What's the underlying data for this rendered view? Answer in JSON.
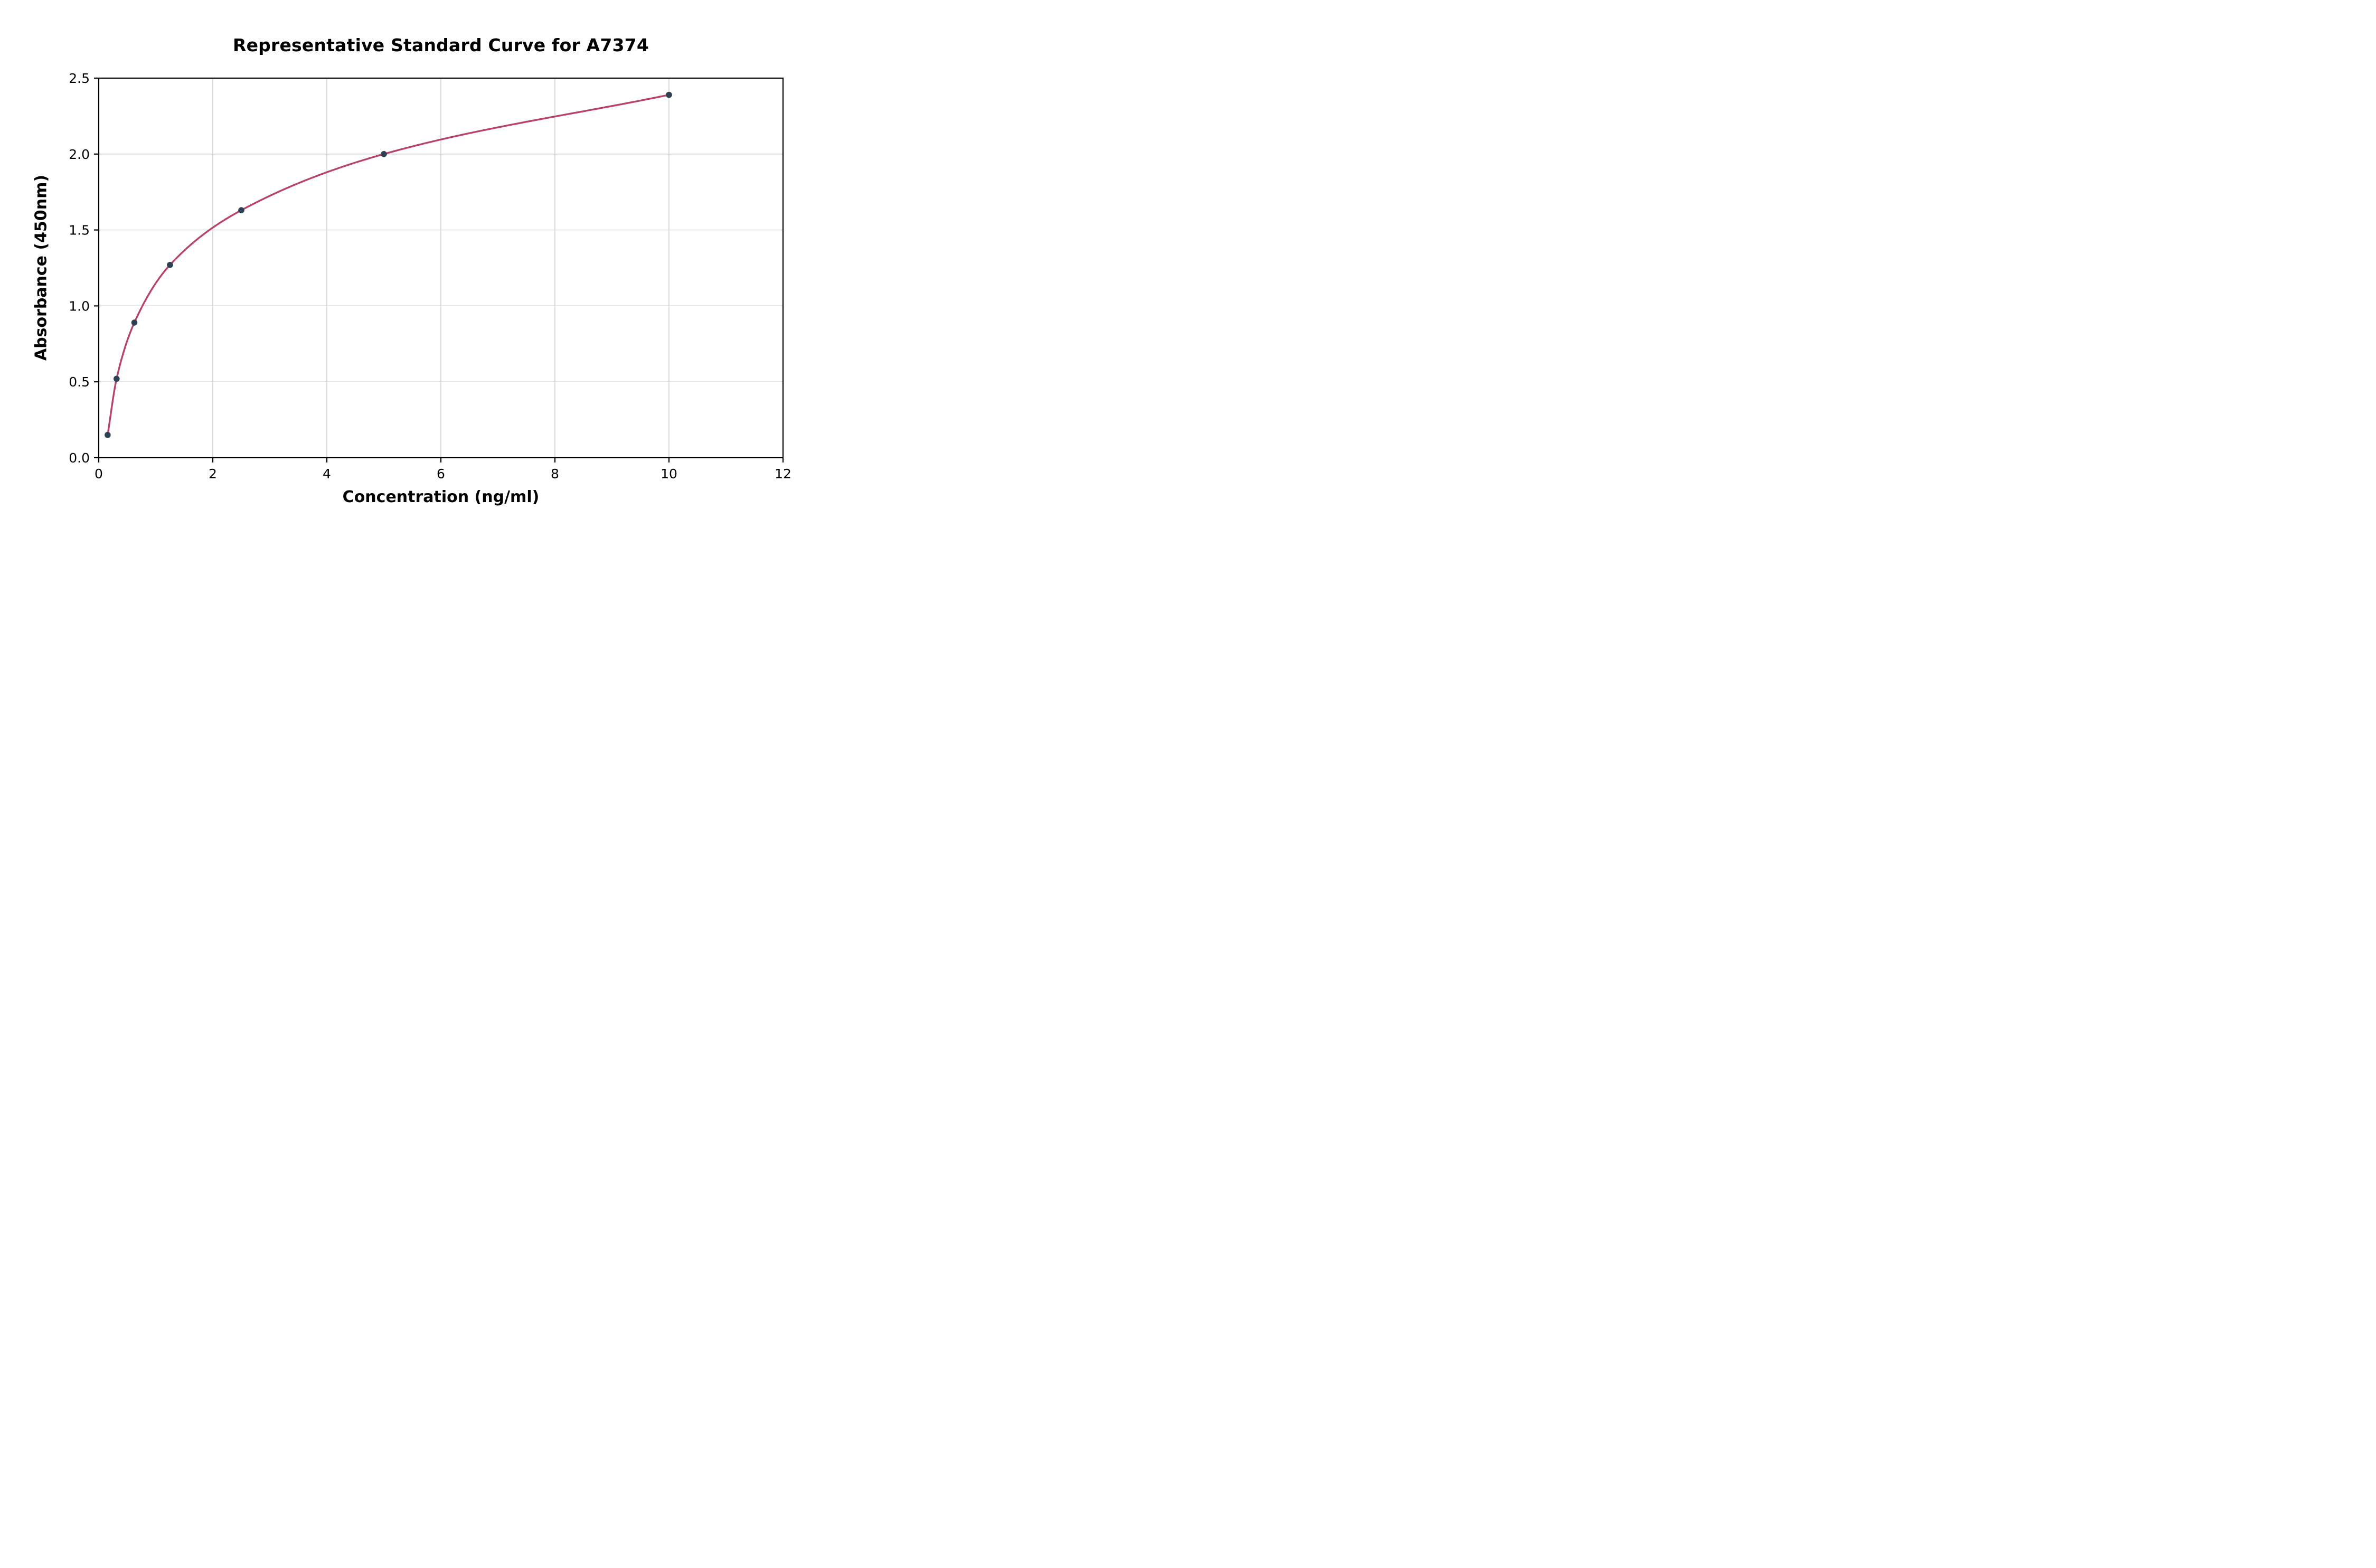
{
  "chart_data": {
    "type": "scatter",
    "title": "Representative Standard Curve for A7374",
    "xlabel": "Concentration (ng/ml)",
    "ylabel": "Absorbance (450nm)",
    "x": [
      0.156,
      0.313,
      0.625,
      1.25,
      2.5,
      5,
      10
    ],
    "y": [
      0.15,
      0.52,
      0.89,
      1.27,
      1.63,
      2.0,
      2.39
    ],
    "fit": "smooth saturating curve drawn through all data points",
    "xlim": [
      0,
      12
    ],
    "ylim": [
      0,
      2.5
    ],
    "xticks": [
      0,
      2,
      4,
      6,
      8,
      10,
      12
    ],
    "xtick_labels": [
      "0",
      "2",
      "4",
      "6",
      "8",
      "10",
      "12"
    ],
    "yticks": [
      0,
      0.5,
      1,
      1.5,
      2,
      2.5
    ],
    "ytick_labels": [
      "0.0",
      "0.5",
      "1.0",
      "1.5",
      "2.0",
      "2.5"
    ],
    "grid": true,
    "legend": false,
    "colors": {
      "curve": "#b8436a",
      "points": "#2e4053",
      "grid": "#c8c8c8",
      "spine": "#000000",
      "text": "#000000",
      "background": "#ffffff"
    }
  }
}
